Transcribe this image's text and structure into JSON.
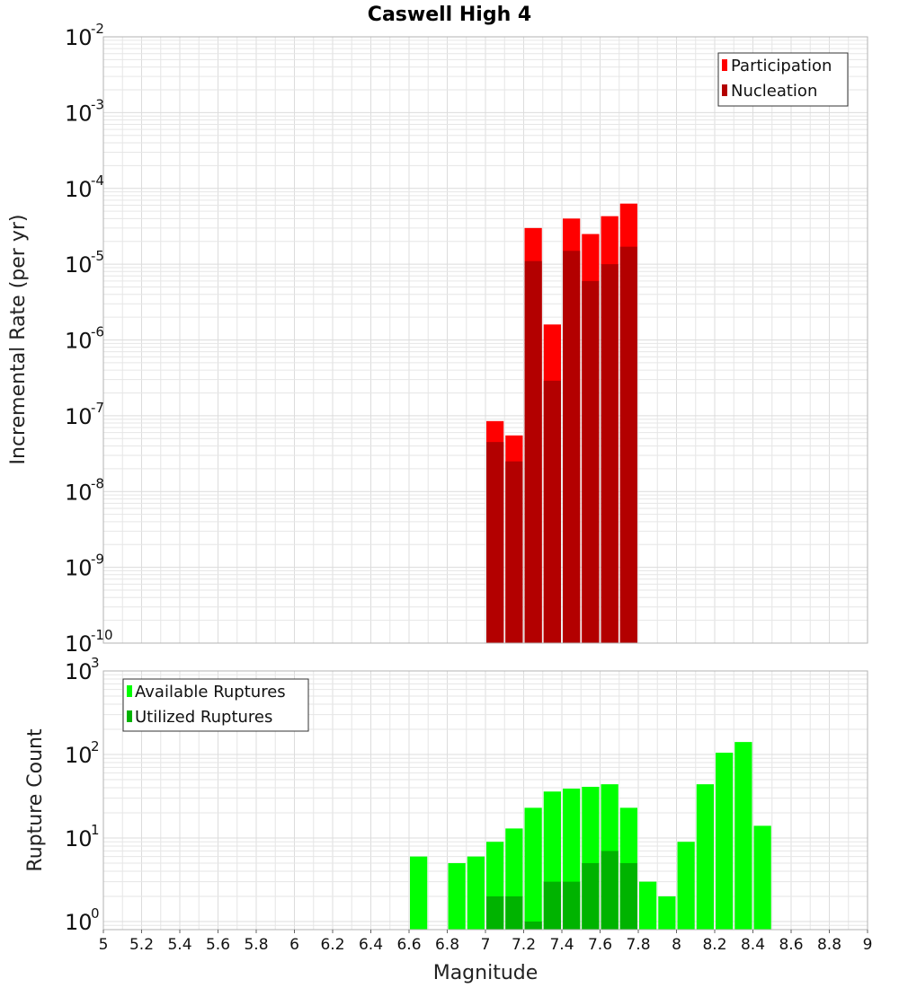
{
  "chart_data": [
    {
      "type": "bar",
      "title": "Caswell High 4",
      "ylabel": "Incremental Rate (per yr)",
      "xlabel": "",
      "yscale": "log",
      "ylim": [
        1e-10,
        0.01
      ],
      "xlim": [
        5,
        9
      ],
      "bin_width": 0.1,
      "legend_position": "top-right",
      "x": [
        7.05,
        7.15,
        7.25,
        7.35,
        7.45,
        7.55,
        7.65,
        7.75
      ],
      "series": [
        {
          "name": "Participation",
          "color": "#ff0000",
          "values": [
            8.5e-08,
            5.5e-08,
            3e-05,
            1.6e-06,
            4e-05,
            2.5e-05,
            4.3e-05,
            6.3e-05
          ]
        },
        {
          "name": "Nucleation",
          "color": "#b30000",
          "values": [
            4.5e-08,
            2.5e-08,
            1.1e-05,
            2.9e-07,
            1.5e-05,
            6e-06,
            1e-05,
            1.7e-05
          ]
        }
      ],
      "y_ticks": [
        {
          "base": "10",
          "exp": "-10"
        },
        {
          "base": "10",
          "exp": "-9"
        },
        {
          "base": "10",
          "exp": "-8"
        },
        {
          "base": "10",
          "exp": "-7"
        },
        {
          "base": "10",
          "exp": "-6"
        },
        {
          "base": "10",
          "exp": "-5"
        },
        {
          "base": "10",
          "exp": "-4"
        },
        {
          "base": "10",
          "exp": "-3"
        },
        {
          "base": "10",
          "exp": "-2"
        }
      ]
    },
    {
      "type": "bar",
      "title": "",
      "ylabel": "Rupture Count",
      "xlabel": "Magnitude",
      "yscale": "log",
      "ylim": [
        0.8,
        1000
      ],
      "xlim": [
        5,
        9
      ],
      "bin_width": 0.1,
      "legend_position": "top-left",
      "series": [
        {
          "name": "Available Ruptures",
          "color": "#00ff00",
          "x": [
            6.65,
            6.85,
            6.95,
            7.05,
            7.15,
            7.25,
            7.35,
            7.45,
            7.55,
            7.65,
            7.75,
            7.85,
            7.95,
            8.05,
            8.15,
            8.25,
            8.35,
            8.45
          ],
          "values": [
            6,
            5,
            6,
            9,
            13,
            23,
            36,
            39,
            41,
            44,
            23,
            3,
            2,
            9,
            44,
            105,
            141,
            14
          ]
        },
        {
          "name": "Utilized Ruptures",
          "color": "#00b300",
          "x": [
            7.05,
            7.15,
            7.25,
            7.35,
            7.45,
            7.55,
            7.65,
            7.75
          ],
          "values": [
            2,
            2,
            1,
            3,
            3,
            5,
            7,
            5
          ]
        }
      ],
      "y_ticks": [
        {
          "base": "10",
          "exp": "0"
        },
        {
          "base": "10",
          "exp": "1"
        },
        {
          "base": "10",
          "exp": "2"
        },
        {
          "base": "10",
          "exp": "3"
        }
      ],
      "x_ticks": [
        "5",
        "5.2",
        "5.4",
        "5.6",
        "5.8",
        "6",
        "6.2",
        "6.4",
        "6.6",
        "6.8",
        "7",
        "7.2",
        "7.4",
        "7.6",
        "7.8",
        "8",
        "8.2",
        "8.4",
        "8.6",
        "8.8",
        "9"
      ]
    }
  ]
}
